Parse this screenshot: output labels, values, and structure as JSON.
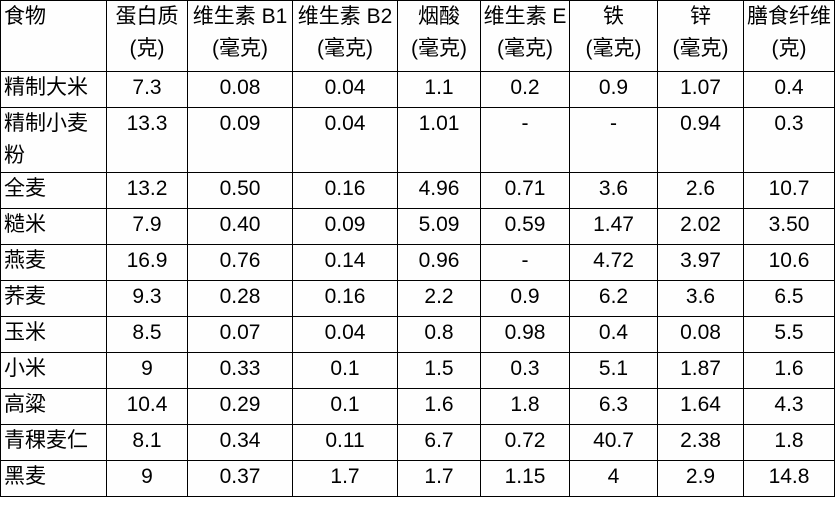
{
  "colors": {
    "border": "#000000",
    "background": "#ffffff",
    "text": "#000000"
  },
  "table": {
    "columns": [
      {
        "label": "食物",
        "unit": ""
      },
      {
        "label": "蛋白质",
        "unit": "(克)"
      },
      {
        "label": "维生素 B1",
        "unit": "(毫克)"
      },
      {
        "label": "维生素 B2",
        "unit": "(毫克)"
      },
      {
        "label": "烟酸",
        "unit": "(毫克)"
      },
      {
        "label": "维生素 E",
        "unit": "(毫克)"
      },
      {
        "label": "铁",
        "unit": "(毫克)"
      },
      {
        "label": "锌",
        "unit": "(毫克)"
      },
      {
        "label": "膳食纤维",
        "unit": "(克)"
      }
    ],
    "rows": [
      {
        "food": "精制大米",
        "values": [
          "7.3",
          "0.08",
          "0.04",
          "1.1",
          "0.2",
          "0.9",
          "1.07",
          "0.4"
        ]
      },
      {
        "food": "精制小麦粉",
        "values": [
          "13.3",
          "0.09",
          "0.04",
          "1.01",
          "-",
          "-",
          "0.94",
          "0.3"
        ]
      },
      {
        "food": "全麦",
        "values": [
          "13.2",
          "0.50",
          "0.16",
          "4.96",
          "0.71",
          "3.6",
          "2.6",
          "10.7"
        ]
      },
      {
        "food": "糙米",
        "values": [
          "7.9",
          "0.40",
          "0.09",
          "5.09",
          "0.59",
          "1.47",
          "2.02",
          "3.50"
        ]
      },
      {
        "food": "燕麦",
        "values": [
          "16.9",
          "0.76",
          "0.14",
          "0.96",
          "-",
          "4.72",
          "3.97",
          "10.6"
        ]
      },
      {
        "food": "荞麦",
        "values": [
          "9.3",
          "0.28",
          "0.16",
          "2.2",
          "0.9",
          "6.2",
          "3.6",
          "6.5"
        ]
      },
      {
        "food": "玉米",
        "values": [
          "8.5",
          "0.07",
          "0.04",
          "0.8",
          "0.98",
          "0.4",
          "0.08",
          "5.5"
        ]
      },
      {
        "food": "小米",
        "values": [
          "9",
          "0.33",
          "0.1",
          "1.5",
          "0.3",
          "5.1",
          "1.87",
          "1.6"
        ]
      },
      {
        "food": "高粱",
        "values": [
          "10.4",
          "0.29",
          "0.1",
          "1.6",
          "1.8",
          "6.3",
          "1.64",
          "4.3"
        ]
      },
      {
        "food": "青稞麦仁",
        "values": [
          "8.1",
          "0.34",
          "0.11",
          "6.7",
          "0.72",
          "40.7",
          "2.38",
          "1.8"
        ]
      },
      {
        "food": "黑麦",
        "values": [
          "9",
          "0.37",
          "1.7",
          "1.7",
          "1.15",
          "4",
          "2.9",
          "14.8"
        ]
      }
    ]
  },
  "chart_data": {
    "type": "table",
    "title": "",
    "columns": [
      "食物",
      "蛋白质(克)",
      "维生素B1(毫克)",
      "维生素B2(毫克)",
      "烟酸(毫克)",
      "维生素E(毫克)",
      "铁(毫克)",
      "锌(毫克)",
      "膳食纤维(克)"
    ],
    "rows": [
      [
        "精制大米",
        7.3,
        0.08,
        0.04,
        1.1,
        0.2,
        0.9,
        1.07,
        0.4
      ],
      [
        "精制小麦粉",
        13.3,
        0.09,
        0.04,
        1.01,
        null,
        null,
        0.94,
        0.3
      ],
      [
        "全麦",
        13.2,
        0.5,
        0.16,
        4.96,
        0.71,
        3.6,
        2.6,
        10.7
      ],
      [
        "糙米",
        7.9,
        0.4,
        0.09,
        5.09,
        0.59,
        1.47,
        2.02,
        3.5
      ],
      [
        "燕麦",
        16.9,
        0.76,
        0.14,
        0.96,
        null,
        4.72,
        3.97,
        10.6
      ],
      [
        "荞麦",
        9.3,
        0.28,
        0.16,
        2.2,
        0.9,
        6.2,
        3.6,
        6.5
      ],
      [
        "玉米",
        8.5,
        0.07,
        0.04,
        0.8,
        0.98,
        0.4,
        0.08,
        5.5
      ],
      [
        "小米",
        9,
        0.33,
        0.1,
        1.5,
        0.3,
        5.1,
        1.87,
        1.6
      ],
      [
        "高粱",
        10.4,
        0.29,
        0.1,
        1.6,
        1.8,
        6.3,
        1.64,
        4.3
      ],
      [
        "青稞麦仁",
        8.1,
        0.34,
        0.11,
        6.7,
        0.72,
        40.7,
        2.38,
        1.8
      ],
      [
        "黑麦",
        9,
        0.37,
        1.7,
        1.7,
        1.15,
        4,
        2.9,
        14.8
      ]
    ],
    "missing_value_marker": "-"
  }
}
